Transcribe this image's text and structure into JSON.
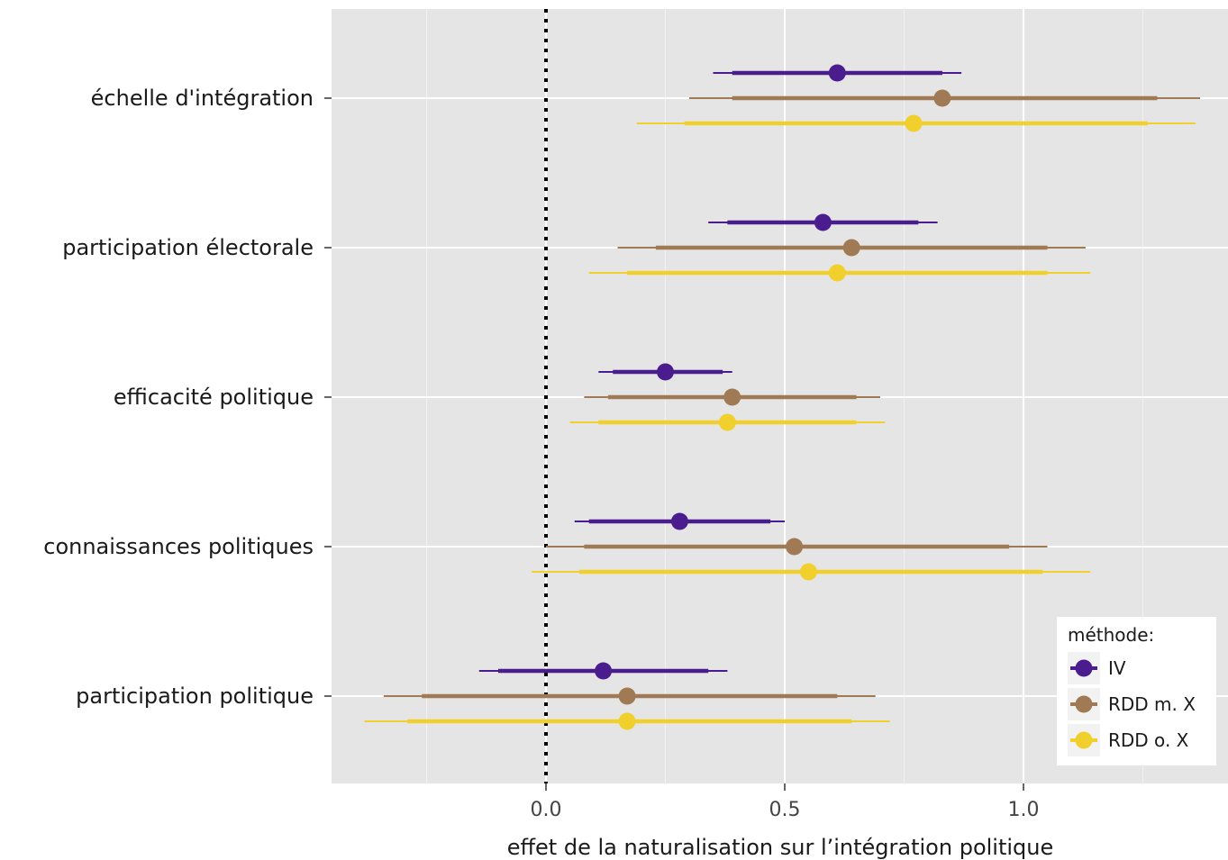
{
  "chart_data": {
    "type": "forest",
    "xlabel": "effet de la naturalisation sur l’intégration politique",
    "xlim": [
      -0.45,
      1.38
    ],
    "x_ticks": [
      0.0,
      0.5,
      1.0
    ],
    "x_tick_labels": [
      "0.0",
      "0.5",
      "1.0"
    ],
    "reference_line": {
      "x": 0.0,
      "style": "dotted"
    },
    "grid": true,
    "categories": [
      "échelle d'intégration",
      "participation électorale",
      "efficacité politique",
      "connaissances politiques",
      "participation politique"
    ],
    "series": [
      {
        "name": "IV",
        "color": "#4B1C8E",
        "points": [
          {
            "category": "échelle d'intégration",
            "estimate": 0.61,
            "ci_inner": [
              0.39,
              0.83
            ],
            "ci_outer": [
              0.35,
              0.87
            ]
          },
          {
            "category": "participation électorale",
            "estimate": 0.58,
            "ci_inner": [
              0.38,
              0.78
            ],
            "ci_outer": [
              0.34,
              0.82
            ]
          },
          {
            "category": "efficacité politique",
            "estimate": 0.25,
            "ci_inner": [
              0.14,
              0.37
            ],
            "ci_outer": [
              0.11,
              0.39
            ]
          },
          {
            "category": "connaissances politiques",
            "estimate": 0.28,
            "ci_inner": [
              0.09,
              0.47
            ],
            "ci_outer": [
              0.06,
              0.5
            ]
          },
          {
            "category": "participation politique",
            "estimate": 0.12,
            "ci_inner": [
              -0.1,
              0.34
            ],
            "ci_outer": [
              -0.14,
              0.38
            ]
          }
        ]
      },
      {
        "name": "RDD m. X",
        "color": "#A07A55",
        "points": [
          {
            "category": "échelle d'intégration",
            "estimate": 0.83,
            "ci_inner": [
              0.39,
              1.28
            ],
            "ci_outer": [
              0.3,
              1.37
            ]
          },
          {
            "category": "participation électorale",
            "estimate": 0.64,
            "ci_inner": [
              0.23,
              1.05
            ],
            "ci_outer": [
              0.15,
              1.13
            ]
          },
          {
            "category": "efficacité politique",
            "estimate": 0.39,
            "ci_inner": [
              0.13,
              0.65
            ],
            "ci_outer": [
              0.08,
              0.7
            ]
          },
          {
            "category": "connaissances politiques",
            "estimate": 0.52,
            "ci_inner": [
              0.08,
              0.97
            ],
            "ci_outer": [
              0.0,
              1.05
            ]
          },
          {
            "category": "participation politique",
            "estimate": 0.17,
            "ci_inner": [
              -0.26,
              0.61
            ],
            "ci_outer": [
              -0.34,
              0.69
            ]
          }
        ]
      },
      {
        "name": "RDD o. X",
        "color": "#F1D02E",
        "points": [
          {
            "category": "échelle d'intégration",
            "estimate": 0.77,
            "ci_inner": [
              0.29,
              1.26
            ],
            "ci_outer": [
              0.19,
              1.36
            ]
          },
          {
            "category": "participation électorale",
            "estimate": 0.61,
            "ci_inner": [
              0.17,
              1.05
            ],
            "ci_outer": [
              0.09,
              1.14
            ]
          },
          {
            "category": "efficacité politique",
            "estimate": 0.38,
            "ci_inner": [
              0.11,
              0.65
            ],
            "ci_outer": [
              0.05,
              0.71
            ]
          },
          {
            "category": "connaissances politiques",
            "estimate": 0.55,
            "ci_inner": [
              0.07,
              1.04
            ],
            "ci_outer": [
              -0.03,
              1.14
            ]
          },
          {
            "category": "participation politique",
            "estimate": 0.17,
            "ci_inner": [
              -0.29,
              0.64
            ],
            "ci_outer": [
              -0.38,
              0.72
            ]
          }
        ]
      }
    ],
    "legend": {
      "title": "méthode:",
      "position": "bottom-right",
      "entries": [
        "IV",
        "RDD m. X",
        "RDD o. X"
      ]
    }
  }
}
